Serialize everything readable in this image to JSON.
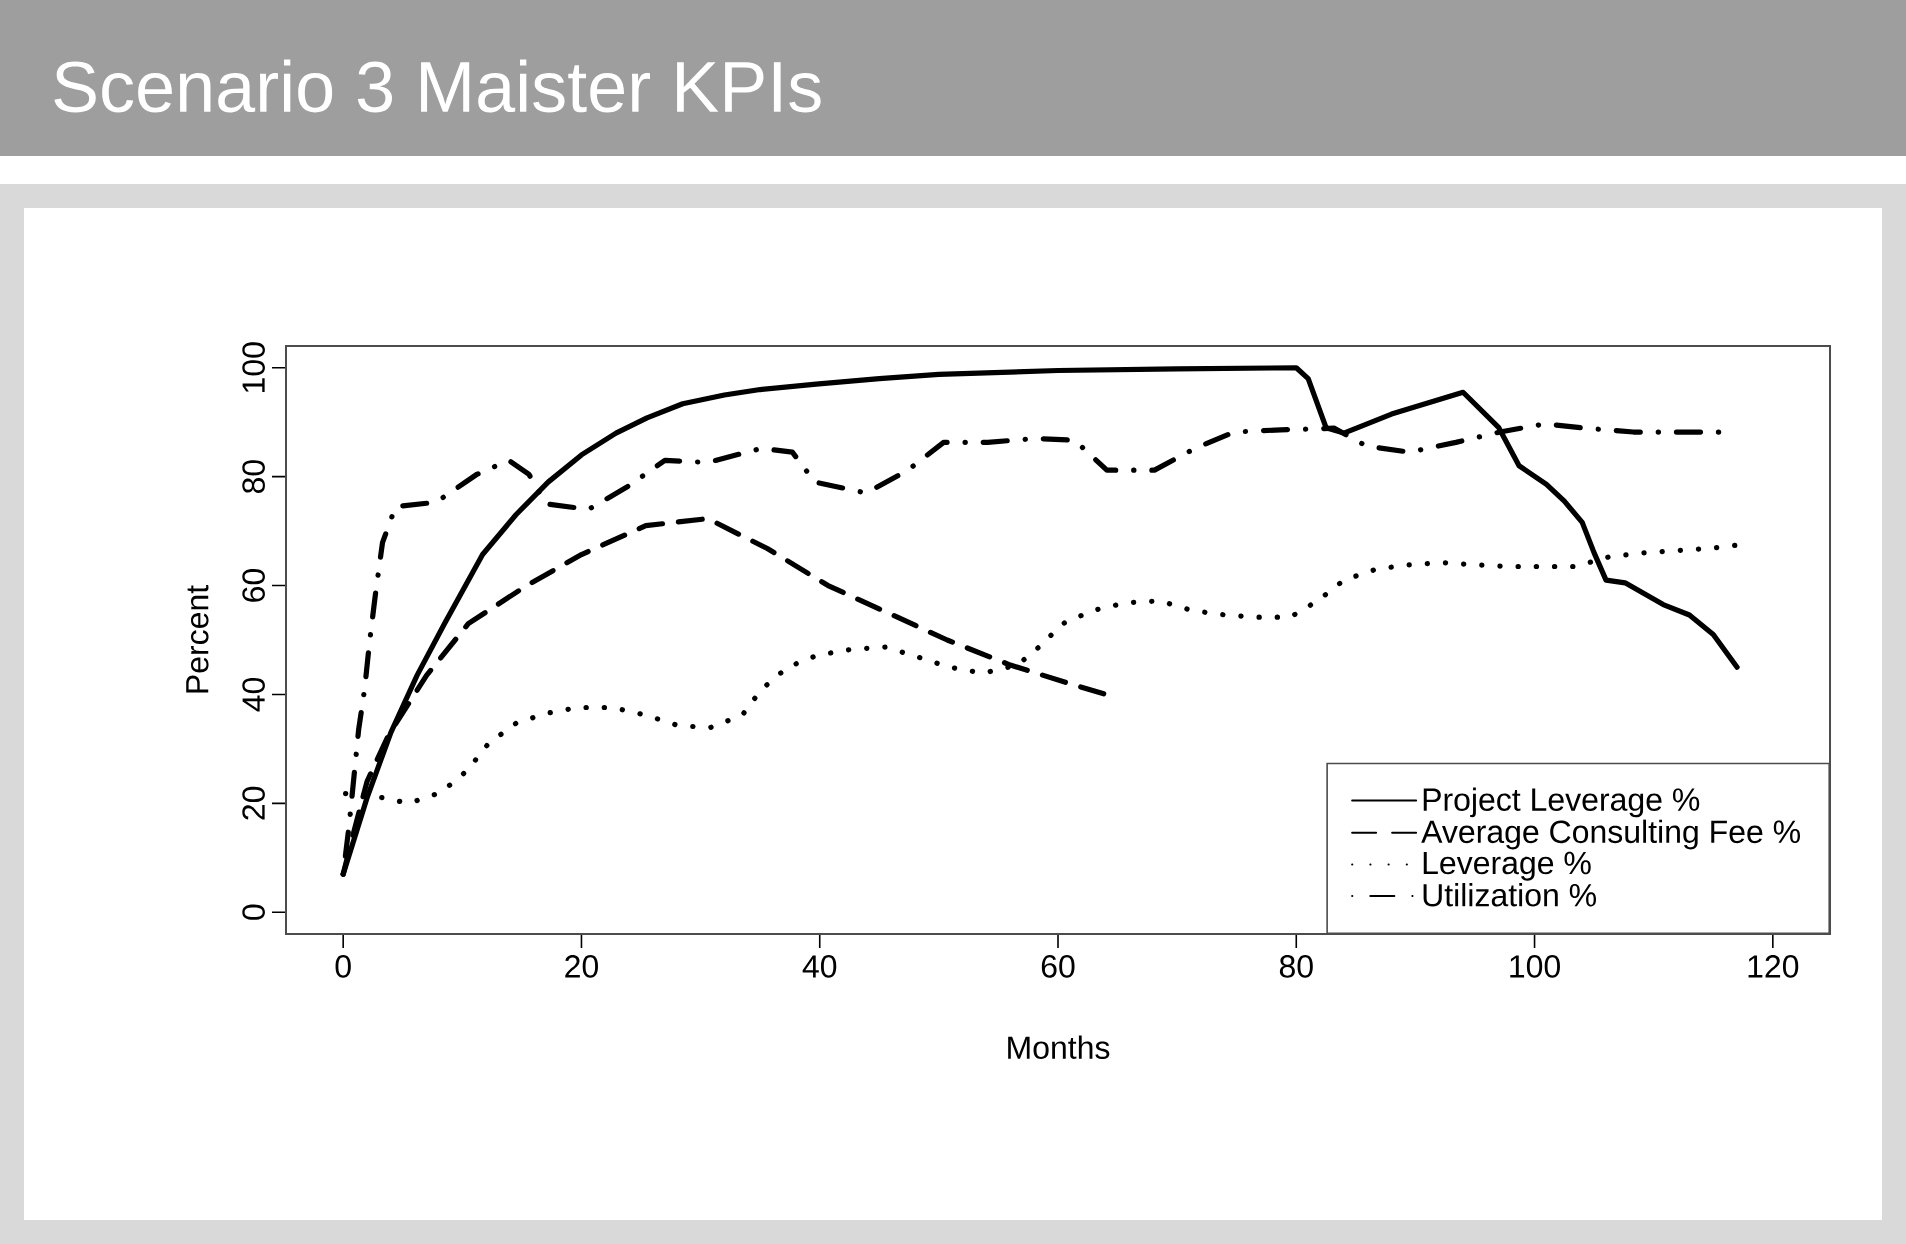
{
  "chart_data": {
    "type": "line",
    "title": "Scenario 3 Maister KPIs",
    "xlabel": "Months",
    "ylabel": "Percent",
    "xlim": [
      -4.8,
      124.8
    ],
    "ylim": [
      -4,
      104
    ],
    "xticks": [
      0,
      20,
      40,
      60,
      80,
      100,
      120
    ],
    "yticks": [
      0,
      20,
      40,
      60,
      80,
      100
    ],
    "legend": "bottom right",
    "series": [
      {
        "name": "Project Leverage %",
        "color": "#000000",
        "line_style": "solid",
        "x": [
          0,
          2,
          4,
          6.2,
          8.5,
          11.7,
          14.5,
          17.2,
          20,
          22.9,
          25.5,
          28.5,
          32,
          35,
          39.7,
          45,
          50,
          60,
          70,
          80,
          81,
          82.5,
          84,
          88,
          94,
          97,
          98.7,
          101,
          102.5,
          104,
          105,
          106,
          107.6,
          110.8,
          113,
          115,
          117
        ],
        "values": [
          7,
          21,
          33,
          43.5,
          53,
          65.7,
          73,
          79,
          84,
          88,
          90.8,
          93.4,
          95,
          96,
          97,
          98,
          98.8,
          99.5,
          99.8,
          100,
          98,
          89,
          88,
          91.5,
          95.5,
          89,
          82,
          78.6,
          75.5,
          71.6,
          66,
          61,
          60.5,
          56.5,
          54.6,
          51,
          45
        ]
      },
      {
        "name": "Average Consulting Fee %",
        "color": "#000000",
        "line_style": "dashed",
        "x": [
          0,
          0.8,
          2,
          3.8,
          7,
          10.5,
          15.4,
          20,
          25.4,
          30.6,
          35.6,
          40.7,
          45.7,
          50.7,
          56,
          61.4,
          64
        ],
        "values": [
          7,
          14,
          24,
          32.5,
          43.5,
          53,
          60,
          65.7,
          71,
          72.3,
          66.8,
          60,
          55,
          50,
          45.4,
          41.7,
          40
        ]
      },
      {
        "name": "Leverage %",
        "color": "#000000",
        "line_style": "dotted",
        "x": [
          0.2,
          2.5,
          5.5,
          8.2,
          10.4,
          12.2,
          14.5,
          17,
          19.7,
          22.6,
          25.4,
          28.1,
          30.8,
          33.5,
          35.1,
          37.3,
          39.8,
          42.7,
          45.5,
          48.2,
          50.9,
          53.7,
          56.6,
          58.4,
          60.4,
          62.9,
          65.6,
          68.5,
          71.3,
          74,
          76.7,
          79.5,
          81.8,
          84,
          86.7,
          89.4,
          92.2,
          95,
          97.9,
          100.7,
          103.4,
          106.3,
          109.1,
          111.8,
          114.6,
          117.3
        ],
        "values": [
          21.8,
          21.4,
          20,
          22,
          26,
          31,
          34.7,
          36.5,
          37.6,
          37.6,
          36.2,
          34.3,
          33.9,
          36.2,
          40.9,
          45,
          47.2,
          48.3,
          48.7,
          46.9,
          45,
          43.9,
          45.4,
          48.7,
          53,
          55.4,
          56.8,
          57.2,
          55.4,
          54.6,
          54.2,
          54.2,
          57.2,
          61,
          63,
          63.8,
          64.2,
          63.8,
          63.5,
          63.5,
          63.5,
          65.3,
          66,
          66.4,
          66.8,
          67.5
        ]
      },
      {
        "name": "Utilization %",
        "color": "#000000",
        "line_style": "dashdot",
        "x": [
          0,
          0.5,
          1.3,
          1.8,
          2.2,
          2.7,
          3.3,
          4.4,
          7.8,
          11.2,
          13.9,
          15.6,
          17,
          20.6,
          23.9,
          27,
          30.6,
          35.1,
          37.7,
          39.6,
          43.9,
          47.4,
          50.4,
          54.1,
          58,
          61.4,
          64.1,
          68.1,
          71.5,
          74.8,
          78.7,
          83.2,
          85.9,
          89.5,
          93.4,
          97.1,
          100.9,
          104.3,
          108.3,
          112.1,
          116
        ],
        "values": [
          7,
          16,
          33.6,
          41,
          49.4,
          58.3,
          67.9,
          74.5,
          75.3,
          80.4,
          83,
          80.4,
          75,
          74,
          78.2,
          83,
          82.6,
          85.2,
          84.5,
          79,
          77,
          81.2,
          86.3,
          86.3,
          87,
          86.7,
          81.2,
          81.2,
          85.2,
          88.2,
          88.6,
          88.9,
          85.6,
          84.5,
          86.3,
          88.2,
          89.7,
          88.9,
          88.2,
          88.2,
          88.2
        ]
      }
    ]
  }
}
